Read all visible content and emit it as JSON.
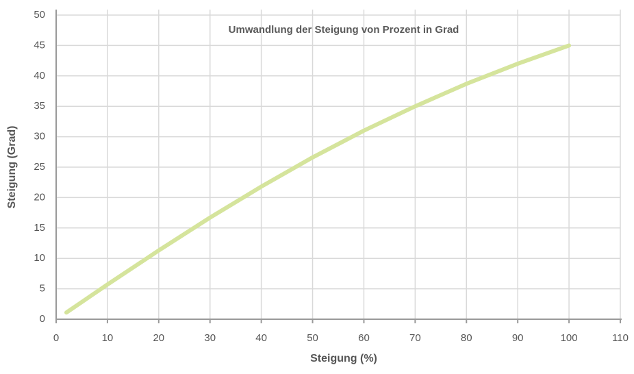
{
  "chart_data": {
    "type": "line",
    "title": "Umwandlung der Steigung von Prozent in Grad",
    "x_label": "Steigung (%)",
    "y_label": "Steigung (Grad)",
    "x": [
      2,
      10,
      20,
      30,
      40,
      50,
      60,
      70,
      80,
      90,
      100
    ],
    "values": [
      1.1,
      5.7,
      11.3,
      16.7,
      21.8,
      26.6,
      31.0,
      35.0,
      38.7,
      42.0,
      45.0
    ],
    "color": "#d5e49c",
    "xlim": [
      0,
      110
    ],
    "xticks": [
      0,
      10,
      20,
      30,
      40,
      50,
      60,
      70,
      80,
      90,
      100,
      110
    ],
    "ylim": [
      0,
      50
    ],
    "yticks": [
      0,
      5,
      10,
      15,
      20,
      25,
      30,
      35,
      40,
      45,
      50
    ],
    "grid": true
  }
}
